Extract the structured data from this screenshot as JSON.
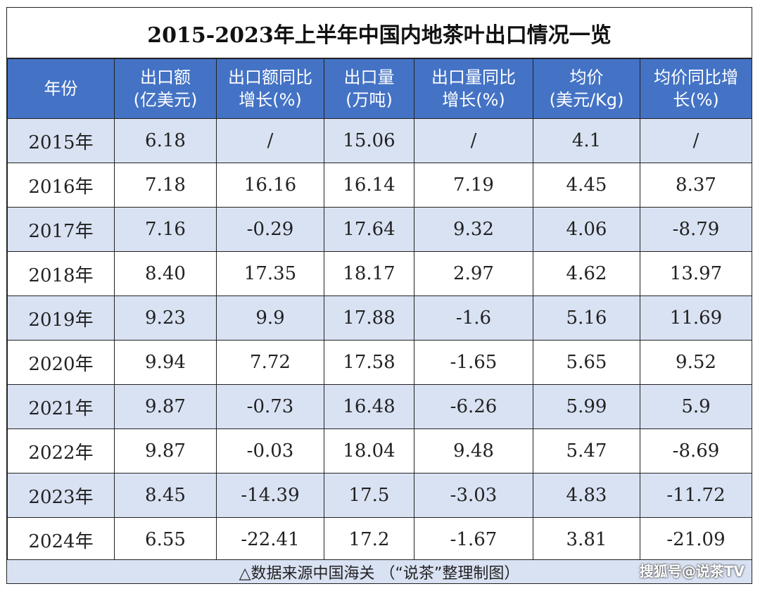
{
  "title": "2015-2023年上半年中国内地茶叶出口情况一览",
  "header": {
    "year": [
      "年份"
    ],
    "export_value": [
      "出口额",
      "(亿美元)"
    ],
    "export_value_yoy": [
      "出口额同比",
      "增长(%)"
    ],
    "export_volume": [
      "出口量",
      "(万吨)"
    ],
    "export_volume_yoy": [
      "出口量同比",
      "增长(%)"
    ],
    "avg_price": [
      "均价",
      "(美元/Kg)"
    ],
    "avg_price_yoy": [
      "均价同比增",
      "长(%)"
    ]
  },
  "footer": {
    "source": "△数据来源中国海关 （“说茶”整理制图）",
    "watermark": "搜狐号@说茶TV"
  },
  "colors": {
    "header_bg": "#4473c5",
    "band_bg": "#d9e2f3",
    "header_text": "#ffffff"
  },
  "chart_data": {
    "type": "table",
    "title": "2015-2023年上半年中国内地茶叶出口情况一览",
    "columns": [
      "年份",
      "出口额(亿美元)",
      "出口额同比增长(%)",
      "出口量(万吨)",
      "出口量同比增长(%)",
      "均价(美元/Kg)",
      "均价同比增长(%)"
    ],
    "rows": [
      [
        "2015年",
        "6.18",
        "/",
        "15.06",
        "/",
        "4.1",
        "/"
      ],
      [
        "2016年",
        "7.18",
        "16.16",
        "16.14",
        "7.19",
        "4.45",
        "8.37"
      ],
      [
        "2017年",
        "7.16",
        "-0.29",
        "17.64",
        "9.32",
        "4.06",
        "-8.79"
      ],
      [
        "2018年",
        "8.40",
        "17.35",
        "18.17",
        "2.97",
        "4.62",
        "13.97"
      ],
      [
        "2019年",
        "9.23",
        "9.9",
        "17.88",
        "-1.6",
        "5.16",
        "11.69"
      ],
      [
        "2020年",
        "9.94",
        "7.72",
        "17.58",
        "-1.65",
        "5.65",
        "9.52"
      ],
      [
        "2021年",
        "9.87",
        "-0.73",
        "16.48",
        "-6.26",
        "5.99",
        "5.9"
      ],
      [
        "2022年",
        "9.87",
        "-0.03",
        "18.04",
        "9.48",
        "5.47",
        "-8.69"
      ],
      [
        "2023年",
        "8.45",
        "-14.39",
        "17.5",
        "-3.03",
        "4.83",
        "-11.72"
      ],
      [
        "2024年",
        "6.55",
        "-22.41",
        "17.2",
        "-1.67",
        "3.81",
        "-21.09"
      ]
    ]
  }
}
